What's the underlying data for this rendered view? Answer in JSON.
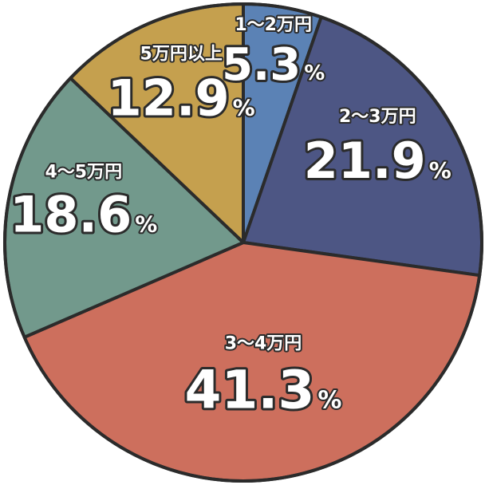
{
  "chart_data": {
    "type": "pie",
    "title": "",
    "slices": [
      {
        "label": "1〜2万円",
        "value": 5.3,
        "value_label": "5.3",
        "unit": "%",
        "color": "#5b82b5"
      },
      {
        "label": "2〜3万円",
        "value": 21.9,
        "value_label": "21.9",
        "unit": "%",
        "color": "#4d5684"
      },
      {
        "label": "3〜4万円",
        "value": 41.3,
        "value_label": "41.3",
        "unit": "%",
        "color": "#cd6f5d"
      },
      {
        "label": "4〜5万円",
        "value": 18.6,
        "value_label": "18.6",
        "unit": "%",
        "color": "#72998c"
      },
      {
        "label": "5万円以上",
        "value": 12.9,
        "value_label": "12.9",
        "unit": "%",
        "color": "#c5a04e"
      }
    ],
    "start_angle_deg": 0,
    "direction": "clockwise"
  }
}
